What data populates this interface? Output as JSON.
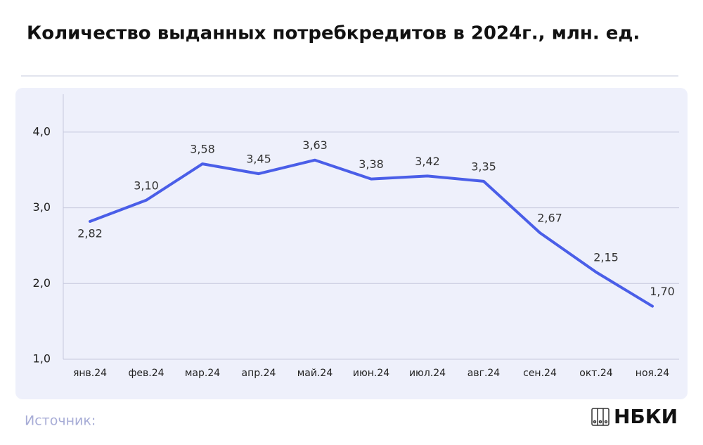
{
  "chart_data": {
    "type": "line",
    "title": "Количество выданных потребкредитов в 2024г., млн. ед.",
    "categories": [
      "янв.24",
      "фев.24",
      "мар.24",
      "апр.24",
      "май.24",
      "июн.24",
      "июл.24",
      "авг.24",
      "сен.24",
      "окт.24",
      "ноя.24"
    ],
    "values": [
      2.82,
      3.1,
      3.58,
      3.45,
      3.63,
      3.38,
      3.42,
      3.35,
      2.67,
      2.15,
      1.7
    ],
    "value_labels": [
      "2,82",
      "3,10",
      "3,58",
      "3,45",
      "3,63",
      "3,38",
      "3,42",
      "3,35",
      "2,67",
      "2,15",
      "1,70"
    ],
    "color": "#4a5ee8",
    "ylim": [
      1,
      4.5
    ],
    "yticks": [
      {
        "value": 1,
        "label": "1,0"
      },
      {
        "value": 2,
        "label": "2,0"
      },
      {
        "value": 3,
        "label": "3,0"
      },
      {
        "value": 4,
        "label": "4,0"
      }
    ],
    "grid": true
  },
  "source": "Источник:",
  "logo": "НБКИ"
}
